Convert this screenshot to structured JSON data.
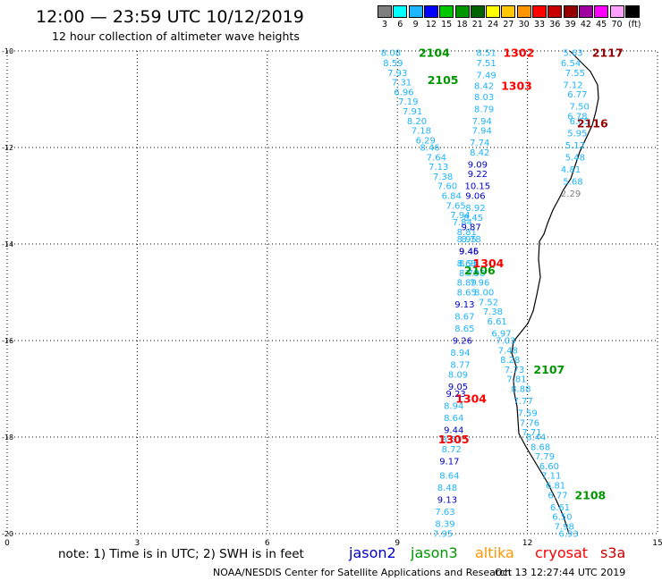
{
  "header": {
    "title": "12:00 — 23:59 UTC 10/12/2019",
    "subtitle": "12 hour collection of altimeter wave heights"
  },
  "legend": {
    "unit": "(ft)",
    "bins": [
      {
        "label": "3",
        "color": "#7f7f7f"
      },
      {
        "label": "6",
        "color": "#00ffff"
      },
      {
        "label": "9",
        "color": "#1eb4ff"
      },
      {
        "label": "12",
        "color": "#0000ff"
      },
      {
        "label": "15",
        "color": "#00c800"
      },
      {
        "label": "18",
        "color": "#009600"
      },
      {
        "label": "21",
        "color": "#006400"
      },
      {
        "label": "24",
        "color": "#ffff00"
      },
      {
        "label": "27",
        "color": "#ffc800"
      },
      {
        "label": "30",
        "color": "#ff9600"
      },
      {
        "label": "33",
        "color": "#ff0000"
      },
      {
        "label": "36",
        "color": "#c80000"
      },
      {
        "label": "39",
        "color": "#960000"
      },
      {
        "label": "42",
        "color": "#a000a0"
      },
      {
        "label": "45",
        "color": "#ff00ff"
      },
      {
        "label": "70",
        "color": "#ffa0ff"
      },
      {
        "label": "",
        "color": "#000000"
      }
    ]
  },
  "axes": {
    "x_ticks": [
      "0",
      "3",
      "6",
      "9",
      "12",
      "15"
    ],
    "y_ticks": [
      "-10",
      "-12",
      "-14",
      "-16",
      "-18",
      "-20"
    ],
    "x_range": [
      0,
      15
    ],
    "y_range": [
      -20,
      -10
    ]
  },
  "note": "note:  1) Time is in UTC;  2) SWH is in feet",
  "satellites": [
    {
      "name": "jason2",
      "color": "#0000c8"
    },
    {
      "name": "jason3",
      "color": "#009600"
    },
    {
      "name": "altika",
      "color": "#ff9600"
    },
    {
      "name": "cryosat",
      "color": "#ff0000"
    },
    {
      "name": "s3a",
      "color": "#c80000"
    }
  ],
  "credit": "NOAA/NESDIS Center for Satellite Applications and Research",
  "timestamp": "Oct 13 12:27:44 UTC 2019",
  "colors": {
    "light": "#1eb4ff",
    "dark": "#0000c8",
    "grey": "#7f7f7f",
    "pass_green": "#009600",
    "pass_red": "#ff0000",
    "pass_darkred": "#960000",
    "coast": "#000000"
  },
  "passes": [
    {
      "label": "2104",
      "x": 9.85,
      "y": -10.04,
      "c": "pass_green"
    },
    {
      "label": "1302",
      "x": 11.8,
      "y": -10.04,
      "c": "pass_red"
    },
    {
      "label": "2117",
      "x": 13.85,
      "y": -10.04,
      "c": "pass_darkred"
    },
    {
      "label": "2105",
      "x": 10.05,
      "y": -10.6,
      "c": "pass_green"
    },
    {
      "label": "1303",
      "x": 11.75,
      "y": -10.72,
      "c": "pass_red"
    },
    {
      "label": "2116",
      "x": 13.5,
      "y": -11.5,
      "c": "pass_darkred"
    },
    {
      "label": "2106",
      "x": 10.9,
      "y": -14.55,
      "c": "pass_green"
    },
    {
      "label": "1304",
      "x": 11.1,
      "y": -14.4,
      "c": "pass_red"
    },
    {
      "label": "2107",
      "x": 12.5,
      "y": -16.6,
      "c": "pass_green"
    },
    {
      "label": "1304",
      "x": 10.7,
      "y": -17.2,
      "c": "pass_red"
    },
    {
      "label": "1305",
      "x": 10.3,
      "y": -18.05,
      "c": "pass_red"
    },
    {
      "label": "2108",
      "x": 13.45,
      "y": -19.2,
      "c": "pass_green"
    }
  ],
  "tracks": [
    {
      "name": "track-2104",
      "points": [
        [
          8.85,
          -10.04,
          "8.08",
          "light"
        ],
        [
          8.9,
          -10.25,
          "8.59",
          "light"
        ],
        [
          9.0,
          -10.45,
          "7.93",
          "light"
        ],
        [
          9.1,
          -10.65,
          "7.31",
          "light"
        ],
        [
          9.15,
          -10.85,
          "6.96",
          "light"
        ],
        [
          9.25,
          -11.05,
          "7.19",
          "light"
        ],
        [
          9.35,
          -11.25,
          "7.91",
          "light"
        ],
        [
          9.45,
          -11.45,
          "8.20",
          "light"
        ],
        [
          9.55,
          -11.65,
          "7.18",
          "light"
        ],
        [
          9.65,
          -11.85,
          "6.29",
          "light"
        ],
        [
          9.75,
          -12.0,
          "8.46",
          "light"
        ],
        [
          9.9,
          -12.2,
          "7.64",
          "light"
        ],
        [
          9.95,
          -12.4,
          "7.13",
          "light"
        ],
        [
          10.05,
          -12.6,
          "7.38",
          "light"
        ],
        [
          10.15,
          -12.8,
          "7.60",
          "light"
        ],
        [
          10.25,
          -13.0,
          "6.84",
          "light"
        ],
        [
          10.35,
          -13.2,
          "7.65",
          "light"
        ],
        [
          10.45,
          -13.4,
          "7.94",
          "light"
        ],
        [
          10.5,
          -13.55,
          "7.84",
          "light"
        ],
        [
          10.6,
          -13.75,
          "8.81",
          "light"
        ],
        [
          10.6,
          -13.9,
          "8.95",
          "light"
        ],
        [
          10.65,
          -14.15,
          "9.45",
          "dark"
        ],
        [
          10.65,
          -14.4,
          "8.96",
          "light"
        ],
        [
          10.65,
          -14.6,
          "8.70",
          "light"
        ],
        [
          10.6,
          -14.8,
          "8.89",
          "light"
        ],
        [
          10.6,
          -15.0,
          "8.65",
          "light"
        ],
        [
          10.55,
          -15.25,
          "9.13",
          "dark"
        ],
        [
          10.55,
          -15.5,
          "8.67",
          "light"
        ],
        [
          10.55,
          -15.75,
          "8.65",
          "light"
        ],
        [
          10.5,
          -16.0,
          "9.26",
          "dark"
        ],
        [
          10.45,
          -16.25,
          "8.94",
          "light"
        ],
        [
          10.45,
          -16.5,
          "8.77",
          "light"
        ],
        [
          10.4,
          -16.7,
          "8.09",
          "light"
        ],
        [
          10.4,
          -16.95,
          "9.05",
          "dark"
        ],
        [
          10.35,
          -17.1,
          "9.23",
          "dark"
        ],
        [
          10.3,
          -17.35,
          "8.94",
          "light"
        ],
        [
          10.3,
          -17.6,
          "8.64",
          "light"
        ],
        [
          10.3,
          -17.85,
          "9.44",
          "dark"
        ],
        [
          10.25,
          -18.05,
          "8.51",
          "light"
        ],
        [
          10.25,
          -18.25,
          "8.72",
          "light"
        ],
        [
          10.2,
          -18.5,
          "9.17",
          "dark"
        ],
        [
          10.2,
          -18.8,
          "8.64",
          "light"
        ],
        [
          10.15,
          -19.05,
          "8.48",
          "light"
        ],
        [
          10.15,
          -19.3,
          "9.13",
          "dark"
        ],
        [
          10.1,
          -19.55,
          "7.63",
          "light"
        ],
        [
          10.1,
          -19.8,
          "8.39",
          "light"
        ],
        [
          10.05,
          -20.0,
          "7.95",
          "light"
        ]
      ]
    },
    {
      "name": "track-1302",
      "points": [
        [
          11.05,
          -10.04,
          "8.51",
          "light"
        ],
        [
          11.05,
          -10.25,
          "7.51",
          "light"
        ],
        [
          11.05,
          -10.5,
          "7.49",
          "light"
        ],
        [
          11.0,
          -10.72,
          "8.42",
          "light"
        ],
        [
          11.0,
          -10.95,
          "8.03",
          "light"
        ],
        [
          11.0,
          -11.2,
          "8.79",
          "light"
        ],
        [
          10.95,
          -11.45,
          "7.94",
          "light"
        ],
        [
          10.95,
          -11.65,
          "7.94",
          "light"
        ],
        [
          10.9,
          -11.9,
          "7.74",
          "light"
        ],
        [
          10.9,
          -12.1,
          "8.42",
          "light"
        ],
        [
          10.85,
          -12.35,
          "9.09",
          "dark"
        ],
        [
          10.85,
          -12.55,
          "9.22",
          "dark"
        ],
        [
          10.85,
          -12.8,
          "10.15",
          "dark"
        ],
        [
          10.8,
          -13.0,
          "9.06",
          "dark"
        ],
        [
          10.8,
          -13.25,
          "8.92",
          "light"
        ],
        [
          10.75,
          -13.45,
          "8.45",
          "light"
        ],
        [
          10.7,
          -13.65,
          "9.87",
          "dark"
        ],
        [
          10.7,
          -13.9,
          "8.78",
          "light"
        ],
        [
          10.65,
          -14.15,
          "9.46",
          "dark"
        ],
        [
          10.6,
          -14.4,
          "8.63",
          "light"
        ]
      ]
    },
    {
      "name": "track-1304",
      "points": [
        [
          10.8,
          -14.6,
          "7.98",
          "light"
        ],
        [
          10.9,
          -14.8,
          "7.96",
          "light"
        ],
        [
          11.0,
          -15.0,
          "8.00",
          "light"
        ],
        [
          11.1,
          -15.2,
          "7.52",
          "light"
        ],
        [
          11.2,
          -15.4,
          "7.38",
          "light"
        ],
        [
          11.3,
          -15.6,
          "6.61",
          "light"
        ],
        [
          11.4,
          -15.85,
          "6.97",
          "light"
        ],
        [
          11.5,
          -16.0,
          "7.03",
          "light"
        ],
        [
          11.55,
          -16.2,
          "7.48",
          "light"
        ],
        [
          11.6,
          -16.4,
          "8.28",
          "light"
        ],
        [
          11.7,
          -16.6,
          "7.73",
          "light"
        ],
        [
          11.75,
          -16.8,
          "7.81",
          "light"
        ],
        [
          11.85,
          -17.0,
          "8.88",
          "light"
        ],
        [
          11.9,
          -17.25,
          "7.77",
          "light"
        ],
        [
          12.0,
          -17.5,
          "7.59",
          "light"
        ],
        [
          12.05,
          -17.7,
          "7.76",
          "light"
        ],
        [
          12.1,
          -17.9,
          "7.71",
          "light"
        ],
        [
          12.2,
          -18.0,
          "8.44",
          "light"
        ],
        [
          12.3,
          -18.2,
          "8.68",
          "light"
        ],
        [
          12.4,
          -18.4,
          "7.79",
          "light"
        ],
        [
          12.5,
          -18.6,
          "6.60",
          "light"
        ],
        [
          12.55,
          -18.8,
          "7.11",
          "light"
        ],
        [
          12.65,
          -19.0,
          "6.81",
          "light"
        ],
        [
          12.7,
          -19.2,
          "6.77",
          "light"
        ],
        [
          12.75,
          -19.45,
          "6.61",
          "light"
        ],
        [
          12.8,
          -19.65,
          "6.50",
          "light"
        ],
        [
          12.85,
          -19.85,
          "7.98",
          "light"
        ],
        [
          12.95,
          -20.0,
          "6.93",
          "light"
        ]
      ]
    },
    {
      "name": "track-2117",
      "points": [
        [
          13.05,
          -10.04,
          "5.63",
          "light"
        ],
        [
          13.0,
          -10.25,
          "6.54",
          "light"
        ],
        [
          13.1,
          -10.45,
          "7.55",
          "light"
        ],
        [
          13.05,
          -10.7,
          "7.12",
          "light"
        ],
        [
          13.15,
          -10.9,
          "6.77",
          "light"
        ],
        [
          13.2,
          -11.15,
          "7.50",
          "light"
        ],
        [
          13.15,
          -11.35,
          "6.78",
          "light"
        ],
        [
          13.2,
          -11.45,
          "6.65",
          "light"
        ],
        [
          13.15,
          -11.7,
          "5.95",
          "light"
        ],
        [
          13.1,
          -11.95,
          "5.12",
          "light"
        ],
        [
          13.1,
          -12.2,
          "5.48",
          "light"
        ],
        [
          13.0,
          -12.45,
          "4.81",
          "light"
        ],
        [
          13.05,
          -12.7,
          "5.68",
          "light"
        ],
        [
          13.0,
          -12.95,
          "2.29",
          "grey"
        ]
      ]
    }
  ]
}
